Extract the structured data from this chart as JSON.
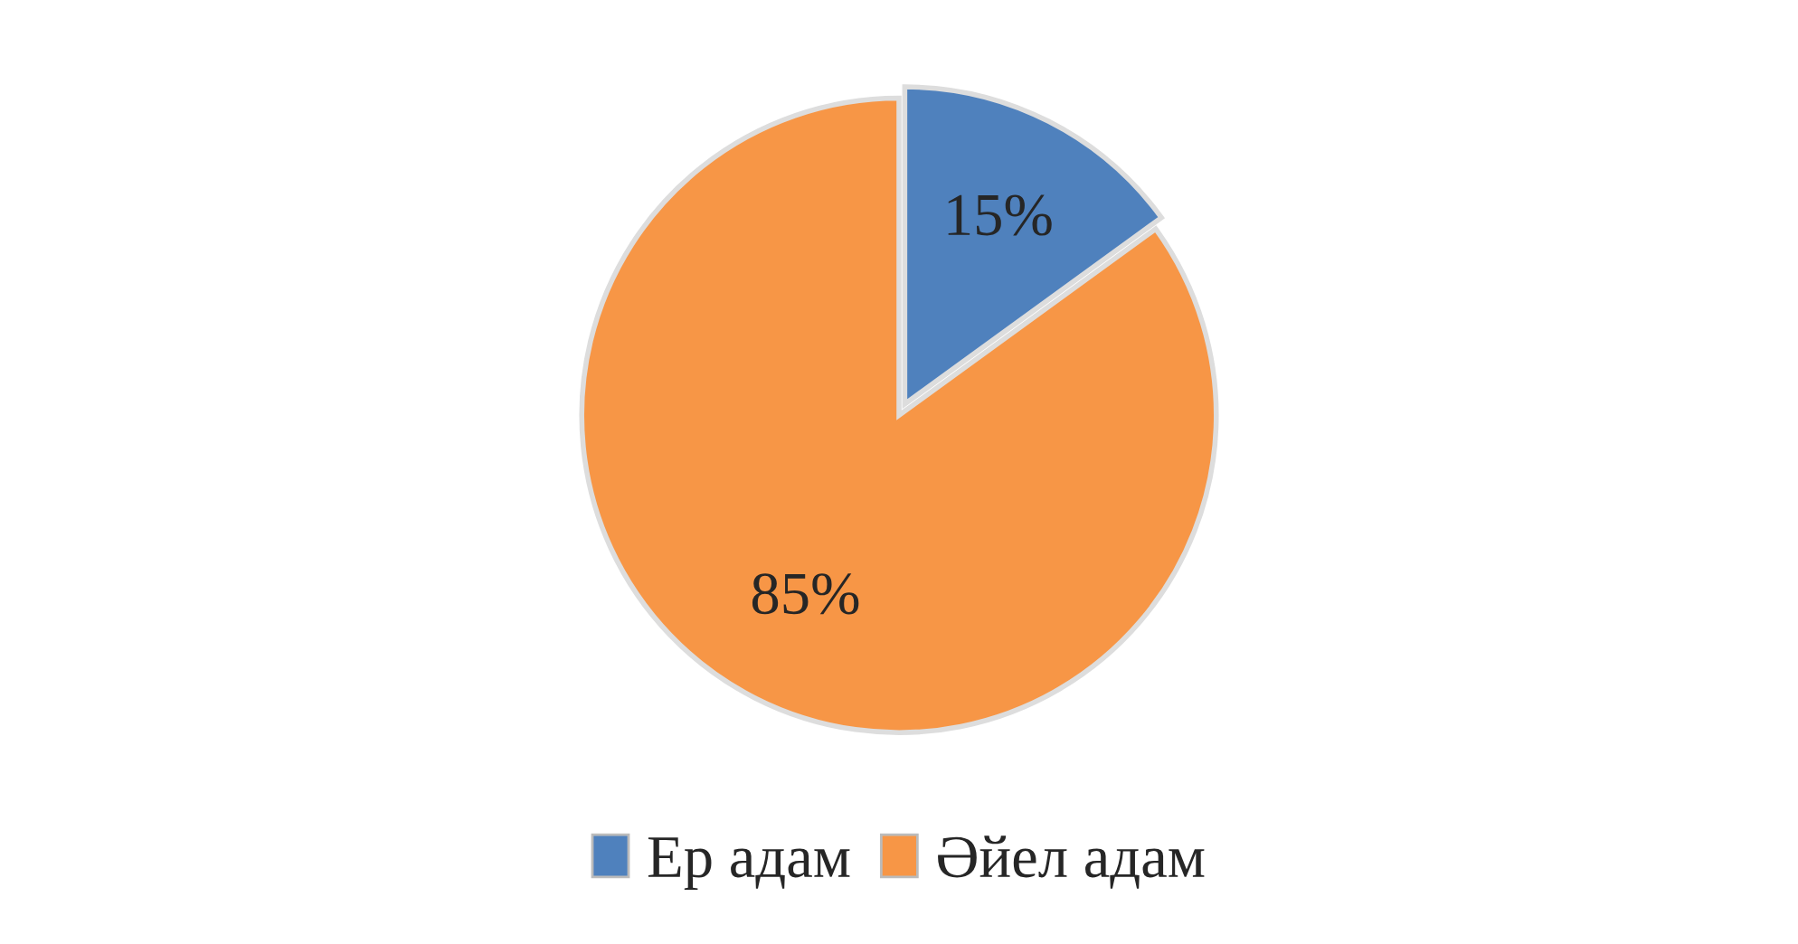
{
  "chart_data": {
    "type": "pie",
    "categories": [
      "Ер адам",
      "Әйел адам"
    ],
    "values": [
      15,
      85
    ],
    "colors": [
      "#4f81bd",
      "#f79646"
    ],
    "value_labels": [
      "15%",
      "85%"
    ],
    "legend": "bottom"
  }
}
